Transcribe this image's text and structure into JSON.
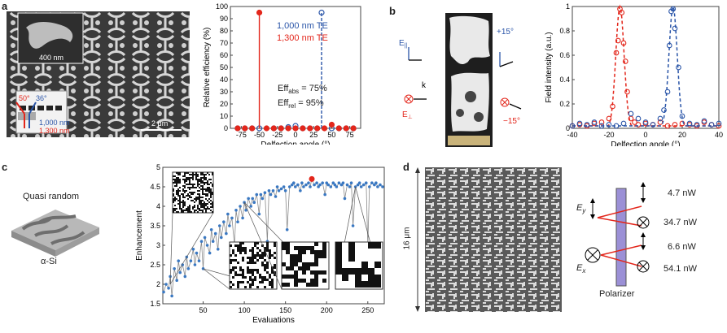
{
  "panels": {
    "a": {
      "label": "a",
      "sem": {
        "scale_top": "400 nm",
        "scale_bottom": "2 μm",
        "angle_red": "50°",
        "angle_blue": "36°",
        "wl_blue": "1,000 nm",
        "wl_red": "1,300 nm"
      },
      "legend": {
        "blue": "1,000 nm TE",
        "red": "1,300 nm TE"
      },
      "eff_abs": "Eff",
      "eff_abs_sub": "abs",
      "eff_abs_val": " = 75%",
      "eff_rel": "Eff",
      "eff_rel_sub": "rel",
      "eff_rel_val": " = 95%"
    },
    "b": {
      "label": "b",
      "diagram": {
        "e_par": "E",
        "e_par_sub": "||",
        "e_perp": "E",
        "e_perp_sub": "⊥",
        "k": "k",
        "plus15": "+15°",
        "minus15": "−15°"
      }
    },
    "c": {
      "label": "c",
      "quasi": "Quasi random",
      "material": "α-Si"
    },
    "d": {
      "label": "d",
      "size": "16 μm",
      "polarizer": "Polarizer",
      "ey": "E",
      "ey_sub": "y",
      "ex": "E",
      "ex_sub": "x",
      "powers": [
        "4.7 nW",
        "34.7 nW",
        "6.6 nW",
        "54.1 nW"
      ]
    }
  },
  "colors": {
    "red": "#e3261b",
    "blue": "#2a55a8",
    "line_blue": "#3a78c2"
  },
  "chart_data": [
    {
      "id": "efficiency",
      "type": "scatter",
      "xlabel": "Delfection angle (°)",
      "ylabel": "Relative efficiency (%)",
      "xlim": [
        -90,
        90
      ],
      "ylim": [
        0,
        100
      ],
      "xticks": [
        -75,
        -50,
        -25,
        0,
        25,
        50,
        75
      ],
      "yticks": [
        0,
        10,
        20,
        30,
        40,
        50,
        60,
        70,
        80,
        90,
        100
      ],
      "series": [
        {
          "name": "1,000 nm TE",
          "style": "open-circle",
          "color": "#2a55a8",
          "x": [
            -80,
            -70,
            -60,
            -50,
            -30,
            -20,
            -10,
            0,
            10,
            20,
            30,
            36,
            50,
            60,
            70,
            80
          ],
          "y": [
            0,
            0,
            0,
            0,
            0,
            0,
            1,
            2,
            0,
            0,
            0,
            95,
            0,
            0,
            0,
            0
          ]
        },
        {
          "name": "1,300 nm TE",
          "style": "filled-circle",
          "color": "#e3261b",
          "x": [
            -80,
            -70,
            -60,
            -50,
            -40,
            -30,
            -20,
            -10,
            0,
            10,
            20,
            30,
            40,
            50,
            60,
            70,
            80
          ],
          "y": [
            0,
            0,
            0,
            95,
            0,
            0,
            0,
            0,
            0,
            0,
            0,
            0,
            0,
            3,
            0,
            0,
            0
          ]
        }
      ]
    },
    {
      "id": "field-intensity",
      "type": "scatter",
      "xlabel": "Delfection angle (°)",
      "ylabel": "Field intensity (a.u.)",
      "xlim": [
        -40,
        40
      ],
      "ylim": [
        0,
        1.0
      ],
      "xticks": [
        -40,
        -20,
        0,
        20,
        40
      ],
      "yticks": [
        0,
        0.2,
        0.4,
        0.6,
        0.8,
        1.0
      ],
      "series": [
        {
          "color": "#e3261b",
          "x": [
            -40,
            -36,
            -32,
            -28,
            -24,
            -20,
            -18,
            -16,
            -15,
            -14,
            -13,
            -12,
            -11,
            -10,
            -8,
            -6,
            -4,
            0,
            4,
            8,
            12,
            16,
            20,
            24,
            28,
            32,
            36,
            40
          ],
          "y": [
            0.02,
            0.03,
            0.02,
            0.04,
            0.05,
            0.08,
            0.18,
            0.62,
            0.72,
            0.98,
            0.95,
            0.7,
            0.55,
            0.3,
            0.08,
            0.05,
            0.03,
            0.04,
            0.03,
            0.05,
            0.02,
            0.03,
            0.04,
            0.03,
            0.02,
            0.05,
            0.03,
            0.02
          ]
        },
        {
          "color": "#2a55a8",
          "x": [
            -40,
            -36,
            -32,
            -28,
            -24,
            -20,
            -16,
            -12,
            -8,
            -4,
            0,
            4,
            8,
            10,
            12,
            13,
            14,
            15,
            16,
            18,
            20,
            24,
            28,
            32,
            36,
            40
          ],
          "y": [
            0.02,
            0.04,
            0.03,
            0.05,
            0.02,
            0.03,
            0.02,
            0.04,
            0.12,
            0.08,
            0.05,
            0.03,
            0.08,
            0.15,
            0.3,
            0.68,
            0.96,
            0.98,
            0.82,
            0.5,
            0.1,
            0.04,
            0.03,
            0.06,
            0.03,
            0.04
          ]
        }
      ]
    },
    {
      "id": "enhancement",
      "type": "line",
      "xlabel": "Evaluations",
      "ylabel": "Enhancement",
      "xlim": [
        1,
        270
      ],
      "ylim": [
        1.5,
        5.0
      ],
      "xticks": [
        50,
        100,
        150,
        200,
        250
      ],
      "yticks": [
        1.5,
        2.0,
        2.5,
        3.0,
        3.5,
        4.0,
        4.5,
        5.0
      ],
      "best": {
        "x": 182,
        "y": 4.7
      },
      "x": [
        2,
        5,
        8,
        10,
        12,
        15,
        18,
        20,
        22,
        25,
        28,
        30,
        32,
        35,
        38,
        40,
        42,
        45,
        48,
        50,
        52,
        55,
        58,
        60,
        62,
        65,
        68,
        70,
        72,
        75,
        78,
        80,
        82,
        85,
        88,
        90,
        92,
        95,
        98,
        100,
        102,
        105,
        108,
        110,
        112,
        115,
        118,
        120,
        122,
        125,
        128,
        130,
        132,
        135,
        138,
        140,
        142,
        145,
        148,
        150,
        152,
        155,
        158,
        160,
        162,
        165,
        168,
        170,
        172,
        175,
        178,
        180,
        182,
        185,
        188,
        190,
        192,
        195,
        198,
        200,
        202,
        205,
        208,
        210,
        212,
        215,
        218,
        220,
        222,
        225,
        228,
        230,
        232,
        235,
        238,
        240,
        242,
        245,
        248,
        250,
        252,
        255,
        258,
        260,
        262,
        265,
        268
      ],
      "y": [
        1.8,
        2.0,
        1.9,
        2.2,
        1.7,
        2.4,
        2.1,
        2.6,
        2.3,
        2.5,
        2.2,
        2.7,
        2.4,
        2.6,
        2.9,
        2.5,
        2.8,
        2.6,
        3.1,
        2.4,
        3.2,
        3.0,
        2.8,
        3.4,
        3.1,
        3.3,
        2.9,
        3.5,
        3.2,
        3.6,
        3.3,
        3.8,
        3.5,
        3.7,
        3.0,
        3.9,
        3.6,
        4.0,
        3.7,
        4.1,
        3.9,
        4.2,
        4.0,
        4.2,
        4.1,
        4.3,
        3.8,
        4.3,
        4.2,
        4.35,
        3.1,
        4.4,
        4.3,
        4.4,
        4.25,
        4.5,
        4.4,
        4.45,
        4.5,
        4.4,
        3.4,
        4.5,
        4.55,
        4.6,
        4.5,
        4.55,
        4.4,
        4.6,
        4.5,
        4.55,
        4.6,
        4.5,
        4.7,
        4.55,
        4.6,
        4.5,
        4.55,
        4.6,
        4.3,
        4.6,
        4.55,
        4.5,
        4.6,
        4.55,
        4.5,
        4.6,
        4.55,
        4.6,
        4.2,
        4.55,
        4.5,
        4.6,
        3.5,
        4.5,
        4.55,
        4.6,
        4.5,
        4.55,
        4.6,
        3.0,
        4.5,
        4.6,
        4.55,
        4.6,
        4.5,
        4.55,
        4.5
      ]
    }
  ]
}
